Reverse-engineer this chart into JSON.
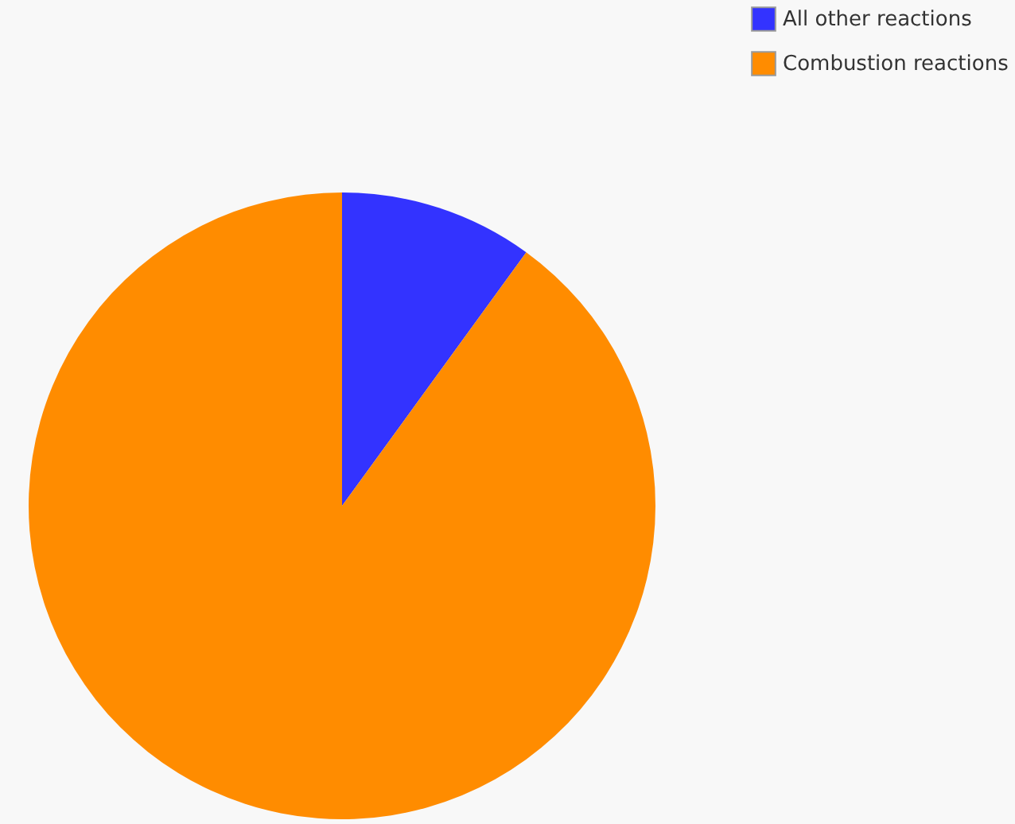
{
  "chart_data": {
    "type": "pie",
    "categories": [
      "All other reactions",
      "Combustion reactions"
    ],
    "values": [
      10,
      90
    ],
    "colors": [
      "#3333ff",
      "#ff8c00"
    ],
    "legend": "top right"
  }
}
